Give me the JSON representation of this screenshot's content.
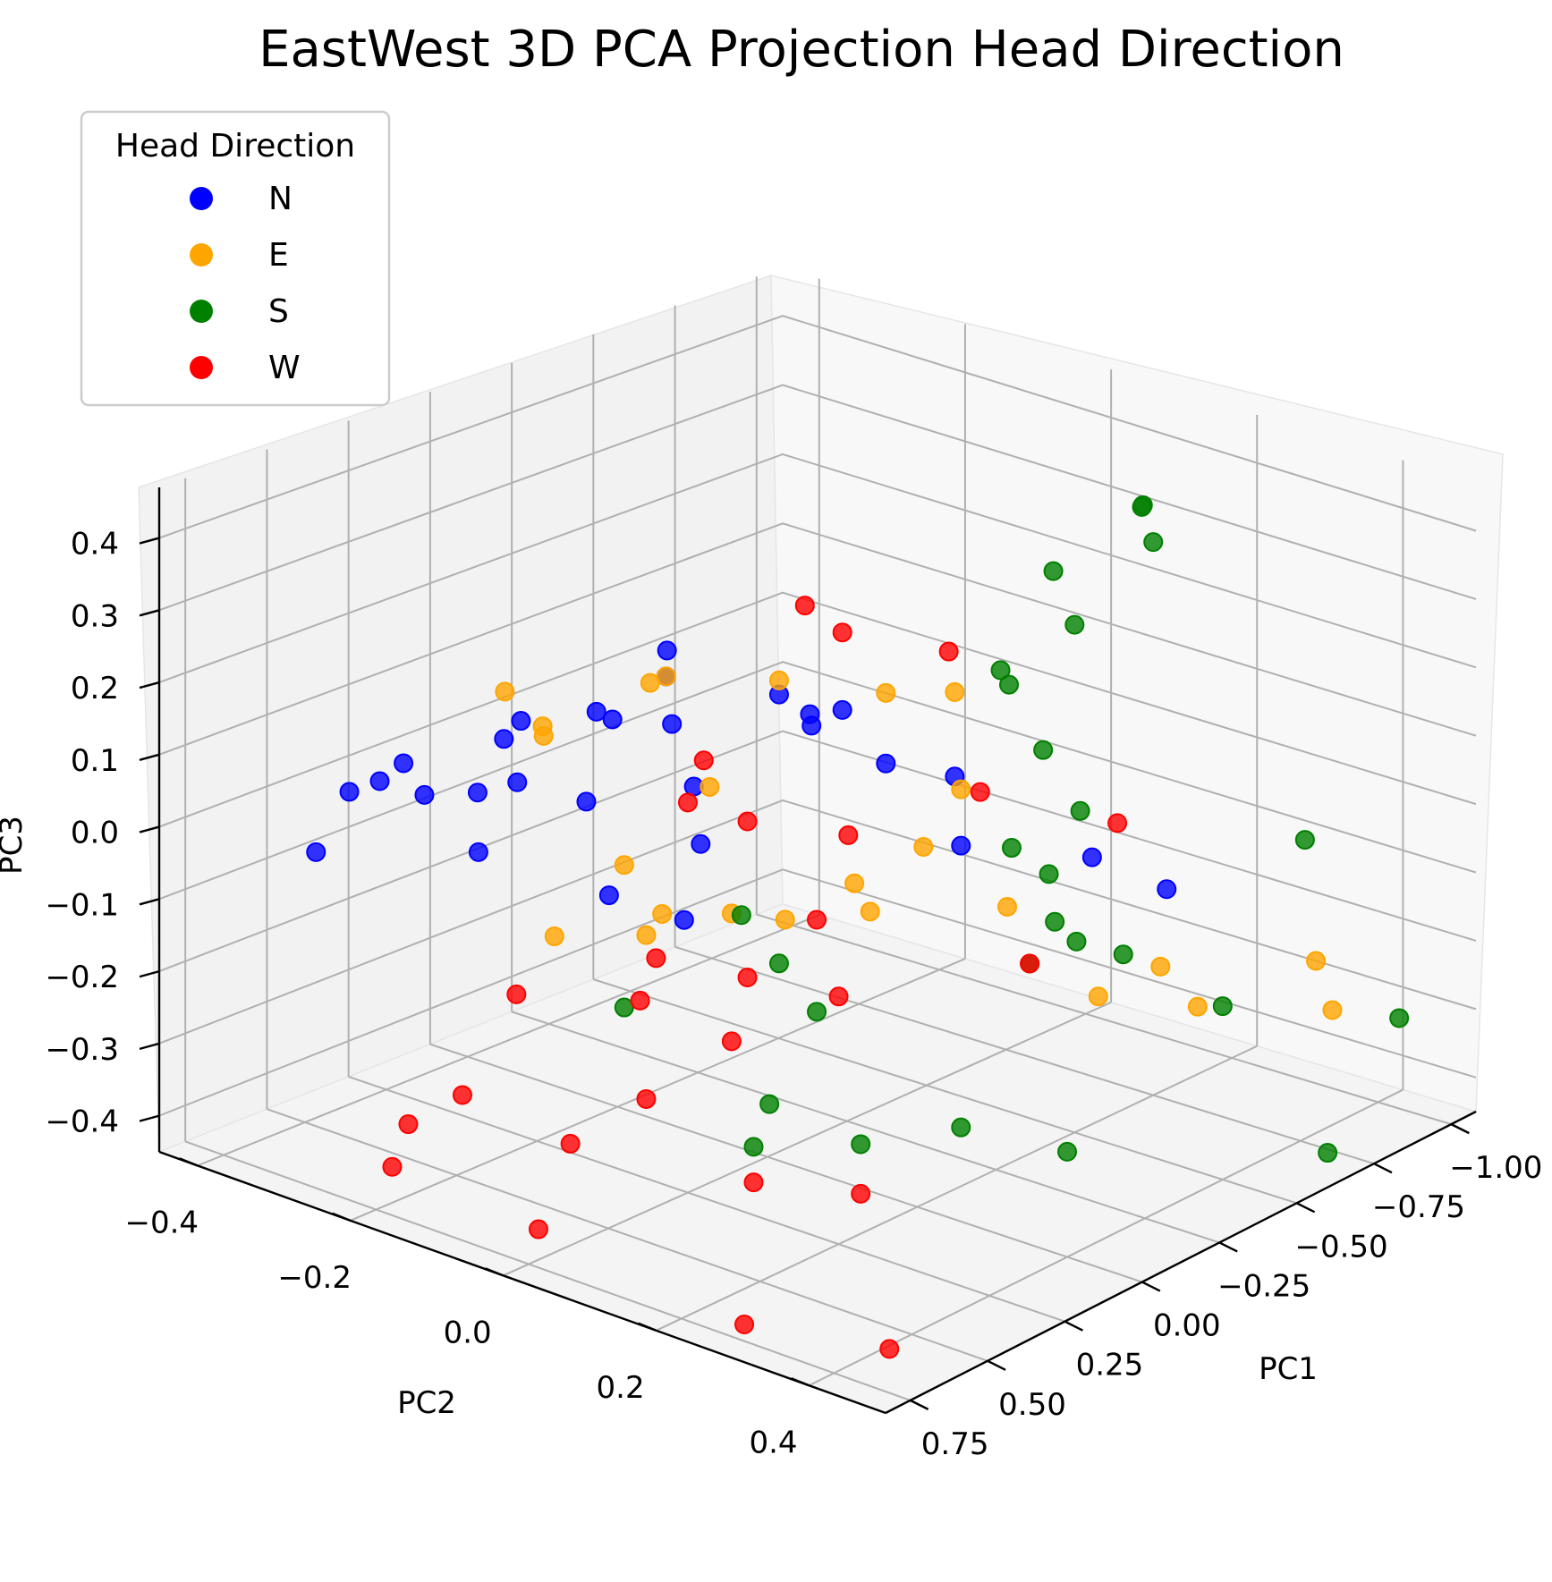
{
  "chart_data": {
    "type": "scatter",
    "title": "EastWest 3D PCA Projection Head Direction",
    "xlabel": "PC1",
    "ylabel": "PC2",
    "zlabel": "PC3",
    "x_ticks": [
      0.75,
      0.5,
      0.25,
      0.0,
      -0.25,
      -0.5,
      -0.75,
      -1.0
    ],
    "x_tick_labels": [
      "0.75",
      "0.50",
      "0.25",
      "0.00",
      "−0.25",
      "−0.50",
      "−0.75",
      "−1.00"
    ],
    "y_ticks": [
      -0.4,
      -0.2,
      0.0,
      0.2,
      0.4
    ],
    "y_tick_labels": [
      "−0.4",
      "−0.2",
      "0.0",
      "0.2",
      "0.4"
    ],
    "z_ticks": [
      -0.4,
      -0.3,
      -0.2,
      -0.1,
      0.0,
      0.1,
      0.2,
      0.3,
      0.4
    ],
    "z_tick_labels": [
      "−0.4",
      "−0.3",
      "−0.2",
      "−0.1",
      "0.0",
      "0.1",
      "0.2",
      "0.3",
      "0.4"
    ],
    "xlim": [
      0.83,
      -1.08
    ],
    "ylim": [
      -0.45,
      0.5
    ],
    "zlim": [
      -0.45,
      0.47
    ],
    "grid": true,
    "legend": {
      "title": "Head Direction",
      "placement": "top-left"
    },
    "series": [
      {
        "name": "N",
        "color": "#0000ff",
        "points": [
          [
            0.55,
            -0.28,
            0.08
          ],
          [
            0.5,
            -0.27,
            0.1
          ],
          [
            0.7,
            -0.3,
            0.0
          ],
          [
            0.55,
            -0.32,
            0.05
          ],
          [
            0.6,
            -0.2,
            0.1
          ],
          [
            0.6,
            -0.13,
            0.13
          ],
          [
            0.4,
            -0.18,
            0.15
          ],
          [
            0.3,
            -0.1,
            0.2
          ],
          [
            0.2,
            -0.05,
            0.25
          ],
          [
            0.15,
            -0.07,
            0.27
          ],
          [
            0.3,
            0.0,
            0.22
          ],
          [
            0.45,
            -0.05,
            0.12
          ],
          [
            0.5,
            -0.12,
            0.13
          ],
          [
            0.35,
            0.05,
            0.16
          ],
          [
            0.4,
            0.08,
            0.1
          ],
          [
            0.45,
            -0.02,
            0.0
          ],
          [
            0.55,
            -0.15,
            0.03
          ],
          [
            0.2,
            0.1,
            0.28
          ],
          [
            0.15,
            0.12,
            0.25
          ],
          [
            0.1,
            0.2,
            0.2
          ],
          [
            0.0,
            0.25,
            0.18
          ],
          [
            0.1,
            0.3,
            0.12
          ],
          [
            0.5,
            0.1,
            0.02
          ],
          [
            -0.2,
            0.35,
            0.06
          ],
          [
            -0.2,
            0.45,
            0.05
          ],
          [
            0.05,
            0.08,
            0.2
          ],
          [
            0.3,
            -0.2,
            0.15
          ],
          [
            0.0,
            0.1,
            0.22
          ],
          [
            0.25,
            -0.1,
            0.18
          ]
        ]
      },
      {
        "name": "E",
        "color": "#ffa500",
        "points": [
          [
            0.35,
            -0.2,
            0.2
          ],
          [
            0.35,
            -0.15,
            0.17
          ],
          [
            0.3,
            -0.17,
            0.14
          ],
          [
            0.25,
            -0.05,
            0.25
          ],
          [
            0.2,
            0.1,
            0.3
          ],
          [
            0.1,
            0.2,
            0.3
          ],
          [
            0.0,
            0.25,
            0.3
          ],
          [
            0.3,
            0.05,
            0.15
          ],
          [
            0.1,
            0.3,
            0.2
          ],
          [
            0.2,
            0.2,
            0.05
          ],
          [
            0.35,
            0.1,
            0.0
          ],
          [
            0.3,
            0.15,
            0.0
          ],
          [
            0.45,
            0.0,
            0.05
          ],
          [
            0.45,
            0.05,
            0.0
          ],
          [
            0.5,
            0.05,
            -0.02
          ],
          [
            0.55,
            -0.05,
            -0.05
          ],
          [
            0.1,
            0.25,
            0.1
          ],
          [
            0.0,
            0.32,
            0.02
          ],
          [
            -0.1,
            0.4,
            -0.1
          ],
          [
            -0.3,
            0.4,
            -0.1
          ],
          [
            -0.3,
            0.45,
            -0.14
          ],
          [
            -0.8,
            0.4,
            -0.2
          ],
          [
            -0.9,
            0.38,
            -0.3
          ],
          [
            0.15,
            0.2,
            0.0
          ],
          [
            0.2,
            -0.05,
            0.25
          ]
        ]
      },
      {
        "name": "S",
        "color": "#008000",
        "points": [
          [
            -0.6,
            0.25,
            0.45
          ],
          [
            -0.62,
            0.24,
            0.44
          ],
          [
            -0.75,
            0.2,
            0.35
          ],
          [
            -0.55,
            0.15,
            0.33
          ],
          [
            -0.5,
            0.2,
            0.28
          ],
          [
            -0.5,
            0.1,
            0.18
          ],
          [
            -0.48,
            0.12,
            0.17
          ],
          [
            -0.4,
            0.2,
            0.12
          ],
          [
            -0.4,
            0.25,
            0.05
          ],
          [
            -0.3,
            0.2,
            0.0
          ],
          [
            -0.3,
            0.25,
            -0.02
          ],
          [
            -0.2,
            0.3,
            -0.05
          ],
          [
            0.2,
            0.05,
            -0.05
          ],
          [
            0.2,
            0.1,
            -0.1
          ],
          [
            0.2,
            0.15,
            -0.15
          ],
          [
            0.35,
            0.15,
            -0.25
          ],
          [
            0.4,
            0.15,
            -0.3
          ],
          [
            0.3,
            0.25,
            -0.28
          ],
          [
            0.1,
            0.3,
            -0.28
          ],
          [
            0.0,
            0.4,
            -0.3
          ],
          [
            -0.3,
            0.35,
            -0.1
          ],
          [
            -0.5,
            0.4,
            -0.2
          ],
          [
            -1.0,
            0.3,
            -0.1
          ],
          [
            -0.95,
            0.45,
            -0.3
          ],
          [
            -0.6,
            0.5,
            -0.4
          ],
          [
            0.0,
            0.35,
            -0.05
          ],
          [
            -0.15,
            0.35,
            -0.05
          ],
          [
            0.45,
            0.0,
            -0.15
          ]
        ]
      },
      {
        "name": "W",
        "color": "#ff0000",
        "points": [
          [
            0.0,
            0.05,
            0.35
          ],
          [
            0.0,
            0.1,
            0.33
          ],
          [
            -0.1,
            0.2,
            0.32
          ],
          [
            0.2,
            0.0,
            0.15
          ],
          [
            0.25,
            0.0,
            0.1
          ],
          [
            0.1,
            0.15,
            0.08
          ],
          [
            0.2,
            0.15,
            -0.02
          ],
          [
            0.35,
            0.0,
            -0.1
          ],
          [
            0.3,
            0.1,
            -0.1
          ],
          [
            0.55,
            -0.1,
            -0.15
          ],
          [
            0.4,
            0.0,
            -0.15
          ],
          [
            0.35,
            0.1,
            -0.18
          ],
          [
            0.5,
            0.05,
            -0.25
          ],
          [
            0.6,
            -0.15,
            -0.3
          ],
          [
            0.65,
            -0.2,
            -0.35
          ],
          [
            0.5,
            -0.05,
            -0.35
          ],
          [
            0.7,
            -0.2,
            -0.4
          ],
          [
            0.6,
            -0.05,
            -0.45
          ],
          [
            0.4,
            0.15,
            -0.35
          ],
          [
            0.3,
            0.25,
            -0.35
          ],
          [
            0.55,
            0.2,
            -0.5
          ],
          [
            0.45,
            0.35,
            -0.5
          ],
          [
            0.0,
            0.35,
            -0.05
          ],
          [
            -0.2,
            0.2,
            0.1
          ],
          [
            -0.4,
            0.3,
            0.05
          ],
          [
            0.3,
            0.1,
            0.12
          ],
          [
            0.25,
            0.2,
            -0.1
          ]
        ]
      }
    ]
  }
}
